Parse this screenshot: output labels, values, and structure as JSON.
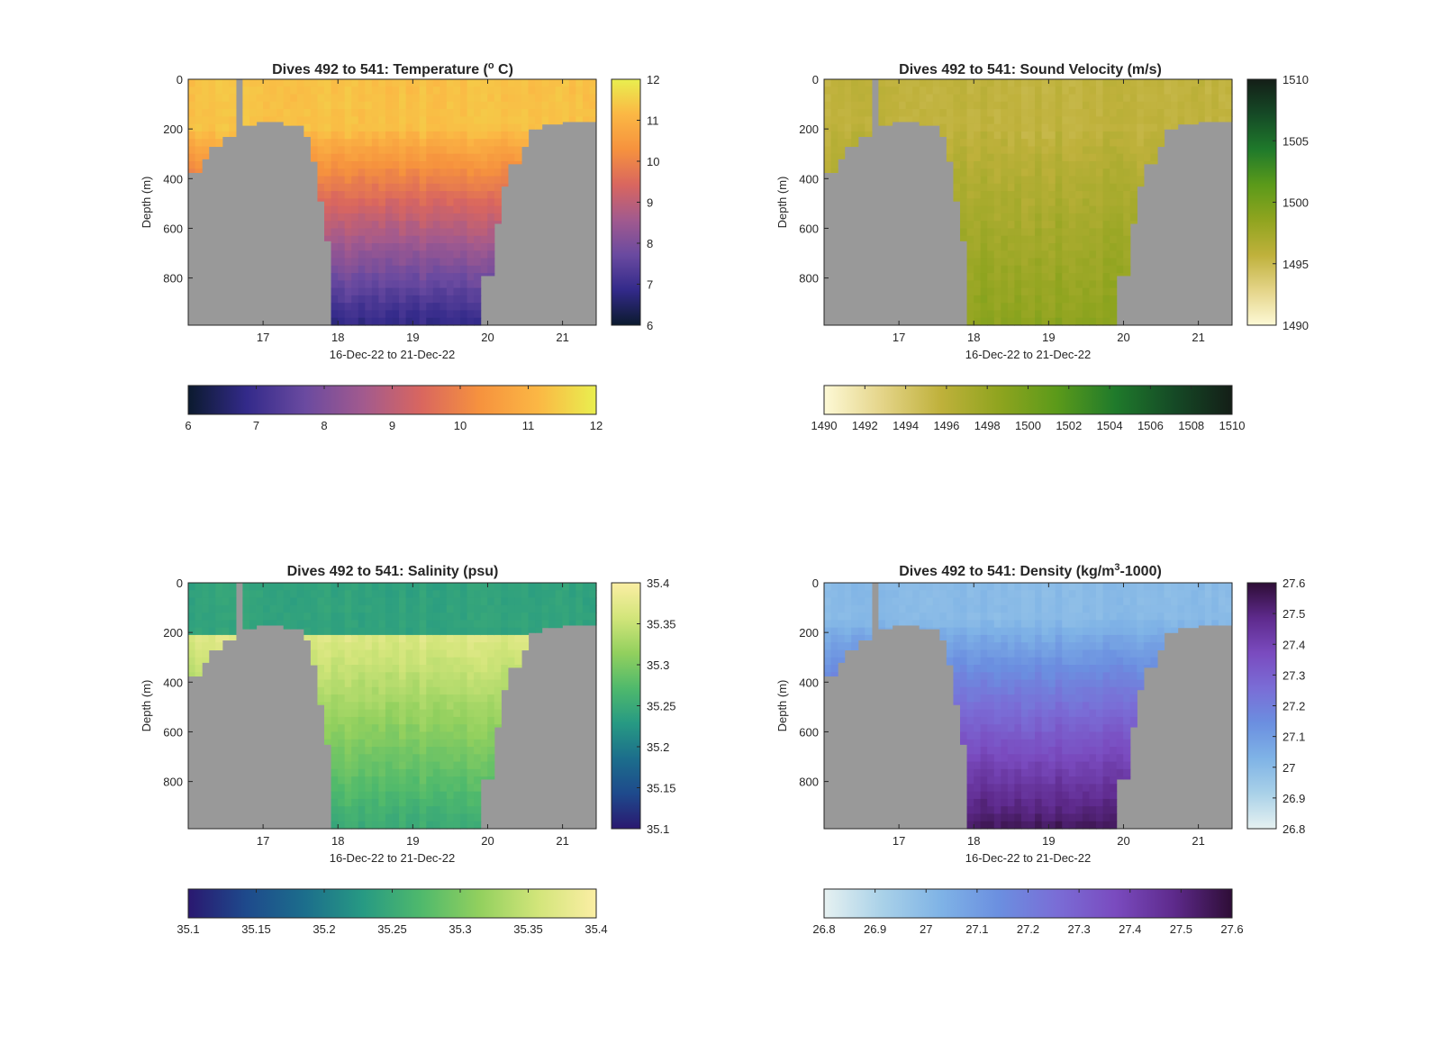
{
  "style": {
    "ground_color": "#999999",
    "axis_color": "#262626"
  },
  "chart_data": [
    {
      "type": "heatmap",
      "title": "Dives 492 to 541: Temperature (",
      "title_sup": "o",
      "title_end": " C)",
      "xlabel": "16-Dec-22 to 21-Dec-22",
      "ylabel": "Depth (m)",
      "x_ticks": [
        "17",
        "18",
        "19",
        "20",
        "21"
      ],
      "x_tick_values": [
        17,
        18,
        19,
        20,
        21
      ],
      "xlim": [
        16.0,
        21.45
      ],
      "y_ticks": [
        "0",
        "200",
        "400",
        "600",
        "800"
      ],
      "y_tick_values": [
        0,
        200,
        400,
        600,
        800
      ],
      "ylim": [
        0,
        990
      ],
      "clim": [
        6,
        12
      ],
      "colorbar_ticks": [
        "6",
        "7",
        "8",
        "9",
        "10",
        "11",
        "12"
      ],
      "horizontal_colorbar_ticks": [
        "6",
        "7",
        "8",
        "9",
        "10",
        "11",
        "12"
      ],
      "colormap": [
        "#0b1a2e",
        "#332a8a",
        "#6a4aa0",
        "#a25a8e",
        "#d9665f",
        "#f6923e",
        "#fbb744",
        "#e9ef4f"
      ],
      "profile": {
        "surface": 11.3,
        "deep": 6.8,
        "thermocline_depth": 200
      }
    },
    {
      "type": "heatmap",
      "title": "Dives 492 to 541: Sound Velocity (m/s)",
      "xlabel": "16-Dec-22 to 21-Dec-22",
      "ylabel": "Depth (m)",
      "x_ticks": [
        "17",
        "18",
        "19",
        "20",
        "21"
      ],
      "x_tick_values": [
        17,
        18,
        19,
        20,
        21
      ],
      "xlim": [
        16.0,
        21.45
      ],
      "y_ticks": [
        "0",
        "200",
        "400",
        "600",
        "800"
      ],
      "y_tick_values": [
        0,
        200,
        400,
        600,
        800
      ],
      "ylim": [
        0,
        990
      ],
      "clim": [
        1490,
        1510
      ],
      "colorbar_ticks": [
        "1490",
        "1495",
        "1500",
        "1505",
        "1510"
      ],
      "horizontal_colorbar_ticks": [
        "1490",
        "1492",
        "1494",
        "1496",
        "1498",
        "1500",
        "1502",
        "1504",
        "1506",
        "1508",
        "1510"
      ],
      "colormap": [
        "#fdf9d6",
        "#e4d488",
        "#bfb13b",
        "#8fa41f",
        "#5b9a1a",
        "#1f7a2b",
        "#154a26",
        "#141e17"
      ],
      "profile": {
        "surface": 1495.6,
        "deep": 1498.7,
        "thermocline_depth": 200
      }
    },
    {
      "type": "heatmap",
      "title": "Dives 492 to 541: Salinity (psu)",
      "xlabel": "16-Dec-22 to 21-Dec-22",
      "ylabel": "Depth (m)",
      "x_ticks": [
        "17",
        "18",
        "19",
        "20",
        "21"
      ],
      "x_tick_values": [
        17,
        18,
        19,
        20,
        21
      ],
      "xlim": [
        16.0,
        21.45
      ],
      "y_ticks": [
        "0",
        "200",
        "400",
        "600",
        "800"
      ],
      "y_tick_values": [
        0,
        200,
        400,
        600,
        800
      ],
      "ylim": [
        0,
        990
      ],
      "clim": [
        35.1,
        35.4
      ],
      "colorbar_ticks": [
        "35.1",
        "35.15",
        "35.2",
        "35.25",
        "35.3",
        "35.35",
        "35.4"
      ],
      "horizontal_colorbar_ticks": [
        "35.1",
        "35.15",
        "35.2",
        "35.25",
        "35.3",
        "35.35",
        "35.4"
      ],
      "colormap": [
        "#2a1870",
        "#1e4a8c",
        "#1c6e8c",
        "#279a83",
        "#4fb96c",
        "#92d05e",
        "#d2e57a",
        "#fbeea4"
      ],
      "profile": {
        "surface": 35.24,
        "mid": 35.37,
        "deep": 35.25,
        "thermocline_depth": 200
      }
    },
    {
      "type": "heatmap",
      "title": "Dives 492 to 541: Density (kg/m",
      "title_sup": "3",
      "title_end": "-1000)",
      "xlabel": "16-Dec-22 to 21-Dec-22",
      "ylabel": "Depth (m)",
      "x_ticks": [
        "17",
        "18",
        "19",
        "20",
        "21"
      ],
      "x_tick_values": [
        17,
        18,
        19,
        20,
        21
      ],
      "xlim": [
        16.0,
        21.45
      ],
      "y_ticks": [
        "0",
        "200",
        "400",
        "600",
        "800"
      ],
      "y_tick_values": [
        0,
        200,
        400,
        600,
        800
      ],
      "ylim": [
        0,
        990
      ],
      "clim": [
        26.8,
        27.6
      ],
      "colorbar_ticks": [
        "26.8",
        "26.9",
        "27",
        "27.1",
        "27.2",
        "27.3",
        "27.4",
        "27.5",
        "27.6"
      ],
      "horizontal_colorbar_ticks": [
        "26.8",
        "26.9",
        "27",
        "27.1",
        "27.2",
        "27.3",
        "27.4",
        "27.5",
        "27.6"
      ],
      "colormap": [
        "#e6f1f1",
        "#a9d1e8",
        "#7fb3e6",
        "#6b8fe0",
        "#7a6dd6",
        "#7a4bbf",
        "#5e2a8c",
        "#2e0d36"
      ],
      "profile": {
        "surface": 27.0,
        "deep": 27.55,
        "thermocline_depth": 150
      }
    }
  ]
}
